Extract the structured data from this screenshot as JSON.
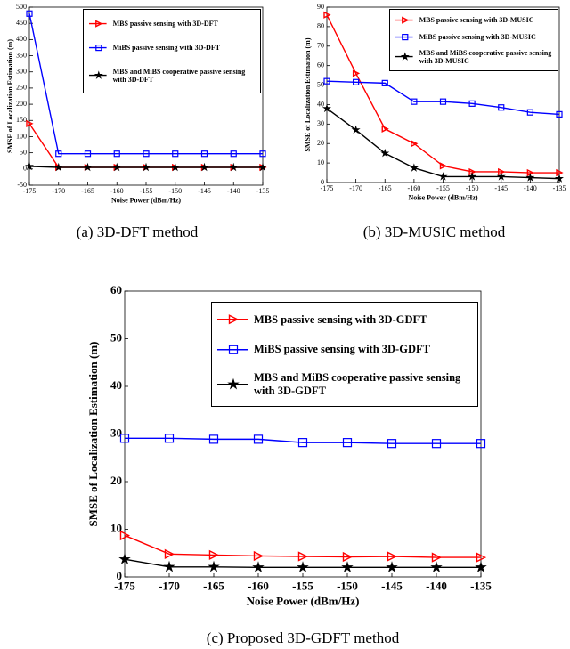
{
  "chart_data": [
    {
      "type": "line",
      "caption": "(a)  3D-DFT method",
      "xlabel": "Noise Power (dBm/Hz)",
      "ylabel": "SMSE of Localization Estimation (m)",
      "x": [
        -175,
        -170,
        -165,
        -160,
        -155,
        -150,
        -145,
        -140,
        -135
      ],
      "xlim": [
        -175,
        -135
      ],
      "xticks": [
        -175,
        -170,
        -165,
        -160,
        -155,
        -150,
        -145,
        -140,
        -135
      ],
      "ylim": [
        -50,
        500
      ],
      "yticks": [
        -50,
        0,
        50,
        100,
        150,
        200,
        250,
        300,
        350,
        400,
        450,
        500
      ],
      "series": [
        {
          "name": "MBS passive sensing with 3D-DFT",
          "color": "#ff0000",
          "marker": "triangle-right",
          "values": [
            140,
            5,
            5,
            5,
            5,
            5,
            5,
            5,
            5
          ]
        },
        {
          "name": "MiBS passive sensing with 3D-DFT",
          "color": "#0000ff",
          "marker": "square",
          "values": [
            480,
            47,
            47,
            47,
            47,
            47,
            47,
            47,
            47
          ]
        },
        {
          "name": "MBS and MiBS cooperative passive sensing with 3D-DFT",
          "color": "#000000",
          "marker": "star",
          "values": [
            8,
            5,
            5,
            5,
            5,
            5,
            5,
            5,
            5
          ]
        }
      ]
    },
    {
      "type": "line",
      "caption": "(b)  3D-MUSIC method",
      "xlabel": "Noise Power (dBm/Hz)",
      "ylabel": "SMSE of Localization Estimation (m)",
      "x": [
        -175,
        -170,
        -165,
        -160,
        -155,
        -150,
        -145,
        -140,
        -135
      ],
      "xlim": [
        -175,
        -135
      ],
      "xticks": [
        -175,
        -170,
        -165,
        -160,
        -155,
        -150,
        -145,
        -140,
        -135
      ],
      "ylim": [
        0,
        90
      ],
      "yticks": [
        0,
        10,
        20,
        30,
        40,
        50,
        60,
        70,
        80,
        90
      ],
      "series": [
        {
          "name": "MBS passive sensing with 3D-MUSIC",
          "color": "#ff0000",
          "marker": "triangle-right",
          "values": [
            86,
            56,
            27.5,
            20,
            8.5,
            5.5,
            5.5,
            5,
            5
          ]
        },
        {
          "name": "MiBS passive sensing with 3D-MUSIC",
          "color": "#0000ff",
          "marker": "square",
          "values": [
            52,
            51.5,
            51,
            41.5,
            41.5,
            40.5,
            38.5,
            36,
            35
          ]
        },
        {
          "name": "MBS and MiBS cooperative passive sensing with 3D-MUSIC",
          "color": "#000000",
          "marker": "star",
          "values": [
            38,
            27,
            15,
            7.5,
            3,
            3,
            3,
            2.5,
            2
          ]
        }
      ]
    },
    {
      "type": "line",
      "caption": "(c)  Proposed 3D-GDFT method",
      "xlabel": "Noise Power (dBm/Hz)",
      "ylabel": "SMSE of Localization Estimation (m)",
      "x": [
        -175,
        -170,
        -165,
        -160,
        -155,
        -150,
        -145,
        -140,
        -135
      ],
      "xlim": [
        -175,
        -135
      ],
      "xticks": [
        -175,
        -170,
        -165,
        -160,
        -155,
        -150,
        -145,
        -140,
        -135
      ],
      "ylim": [
        0,
        60
      ],
      "yticks": [
        0,
        10,
        20,
        30,
        40,
        50,
        60
      ],
      "series": [
        {
          "name": "MBS passive sensing with 3D-GDFT",
          "color": "#ff0000",
          "marker": "triangle-right",
          "values": [
            8.7,
            4.8,
            4.6,
            4.4,
            4.3,
            4.2,
            4.3,
            4.1,
            4.1
          ]
        },
        {
          "name": "MiBS passive sensing with 3D-GDFT",
          "color": "#0000ff",
          "marker": "square",
          "values": [
            29.1,
            29.1,
            28.9,
            28.9,
            28.2,
            28.2,
            28.0,
            28.0,
            28.0
          ]
        },
        {
          "name": "MBS and MiBS cooperative passive sensing with 3D-GDFT",
          "color": "#000000",
          "marker": "star",
          "values": [
            3.7,
            2.1,
            2.1,
            2.0,
            2.0,
            2.0,
            2.0,
            2.0,
            2.0
          ]
        }
      ]
    }
  ]
}
